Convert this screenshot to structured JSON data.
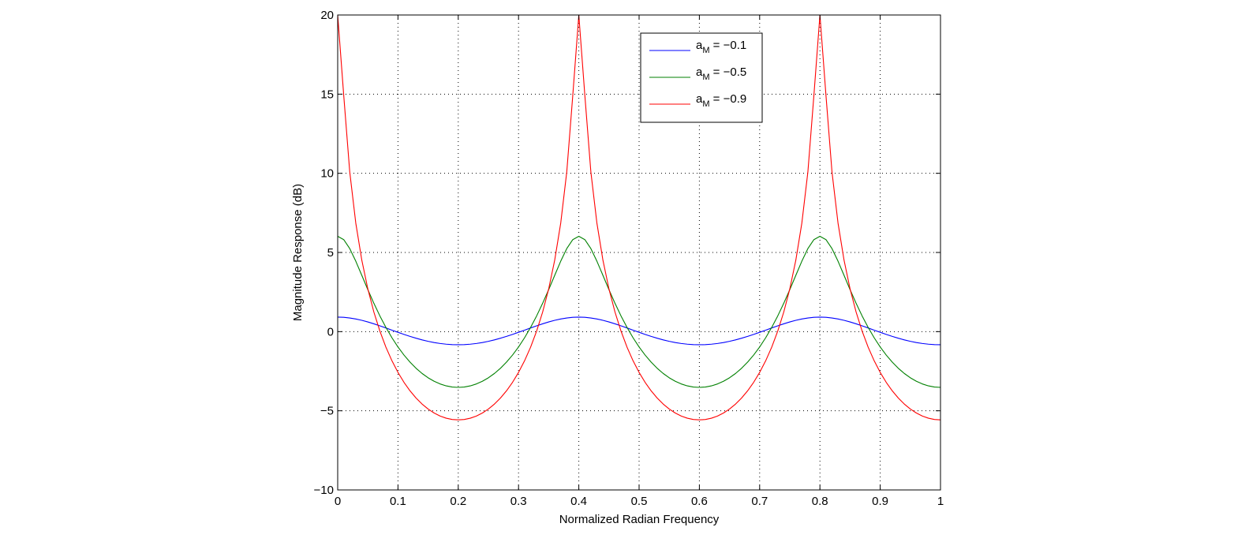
{
  "chart_data": {
    "type": "line",
    "title": "",
    "xlabel": "Normalized Radian Frequency",
    "ylabel": "Magnitude Response (dB)",
    "xlim": [
      0,
      1
    ],
    "ylim": [
      -10,
      20
    ],
    "xticks": [
      0,
      0.1,
      0.2,
      0.3,
      0.4,
      0.5,
      0.6,
      0.7,
      0.8,
      0.9,
      1
    ],
    "xtick_labels": [
      "0",
      "0.1",
      "0.2",
      "0.3",
      "0.4",
      "0.5",
      "0.6",
      "0.7",
      "0.8",
      "0.9",
      "1"
    ],
    "yticks": [
      -10,
      -5,
      0,
      5,
      10,
      15,
      20
    ],
    "ytick_labels": [
      "−10",
      "−5",
      "0",
      "5",
      "10",
      "15",
      "20"
    ],
    "grid": true,
    "grid_style": "dotted",
    "legend_position": "top-right",
    "comb_delay_M": 5,
    "samples": 101,
    "series": [
      {
        "name": "a_M = −0.1",
        "legend_base": "a",
        "legend_sub": "M",
        "legend_rest": " = −0.1",
        "a_M": -0.1,
        "color": "#0000ff",
        "max_db": 0.92,
        "min_db": -0.83
      },
      {
        "name": "a_M = −0.5",
        "legend_base": "a",
        "legend_sub": "M",
        "legend_rest": " = −0.5",
        "a_M": -0.5,
        "color": "#008000",
        "max_db": 6.02,
        "min_db": -3.52
      },
      {
        "name": "a_M = −0.9",
        "legend_base": "a",
        "legend_sub": "M",
        "legend_rest": " = −0.9",
        "a_M": -0.9,
        "color": "#ff0000",
        "max_db": 20.0,
        "min_db": -5.58
      }
    ]
  }
}
